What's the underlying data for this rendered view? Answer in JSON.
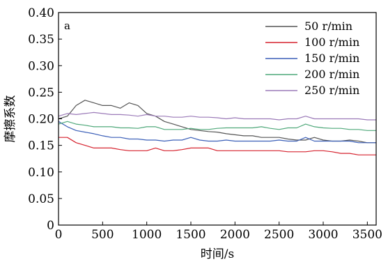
{
  "chart_data": {
    "type": "line",
    "panel_label": "a",
    "xlabel": "时间/s",
    "ylabel": "摩擦系数",
    "xlim": [
      0,
      3600
    ],
    "ylim": [
      0,
      0.4
    ],
    "xticks": [
      0,
      500,
      1000,
      1500,
      2000,
      2500,
      3000,
      3500
    ],
    "yticks": [
      0,
      0.05,
      0.1,
      0.15,
      0.2,
      0.25,
      0.3,
      0.35,
      0.4
    ],
    "ytick_labels": [
      "0",
      "0.05",
      "0.10",
      "0.15",
      "0.20",
      "0.25",
      "0.30",
      "0.35",
      "0.40"
    ],
    "grid": false,
    "legend_position": "top-right",
    "series": [
      {
        "name": "50 r/min",
        "color": "#555555",
        "x": [
          0,
          100,
          200,
          300,
          400,
          500,
          600,
          700,
          800,
          900,
          1000,
          1100,
          1200,
          1300,
          1400,
          1500,
          1600,
          1700,
          1800,
          1900,
          2000,
          2100,
          2200,
          2300,
          2400,
          2500,
          2600,
          2700,
          2800,
          2900,
          3000,
          3100,
          3200,
          3300,
          3400,
          3500,
          3600
        ],
        "y": [
          0.2,
          0.205,
          0.225,
          0.235,
          0.23,
          0.225,
          0.225,
          0.22,
          0.23,
          0.225,
          0.21,
          0.205,
          0.195,
          0.19,
          0.185,
          0.18,
          0.178,
          0.176,
          0.175,
          0.172,
          0.17,
          0.168,
          0.168,
          0.165,
          0.165,
          0.165,
          0.162,
          0.16,
          0.16,
          0.165,
          0.16,
          0.158,
          0.158,
          0.16,
          0.158,
          0.155,
          0.155
        ]
      },
      {
        "name": "100 r/min",
        "color": "#d6222e",
        "x": [
          0,
          100,
          200,
          300,
          400,
          500,
          600,
          700,
          800,
          900,
          1000,
          1100,
          1200,
          1300,
          1400,
          1500,
          1600,
          1700,
          1800,
          1900,
          2000,
          2100,
          2200,
          2300,
          2400,
          2500,
          2600,
          2700,
          2800,
          2900,
          3000,
          3100,
          3200,
          3300,
          3400,
          3500,
          3600
        ],
        "y": [
          0.165,
          0.165,
          0.155,
          0.15,
          0.145,
          0.145,
          0.145,
          0.142,
          0.14,
          0.14,
          0.14,
          0.145,
          0.14,
          0.14,
          0.142,
          0.145,
          0.145,
          0.145,
          0.14,
          0.14,
          0.14,
          0.14,
          0.14,
          0.14,
          0.14,
          0.14,
          0.138,
          0.138,
          0.138,
          0.14,
          0.14,
          0.138,
          0.135,
          0.135,
          0.132,
          0.132,
          0.132
        ]
      },
      {
        "name": "150 r/min",
        "color": "#3b5fb8",
        "x": [
          0,
          100,
          200,
          300,
          400,
          500,
          600,
          700,
          800,
          900,
          1000,
          1100,
          1200,
          1300,
          1400,
          1500,
          1600,
          1700,
          1800,
          1900,
          2000,
          2100,
          2200,
          2300,
          2400,
          2500,
          2600,
          2700,
          2800,
          2900,
          3000,
          3100,
          3200,
          3300,
          3400,
          3500,
          3600
        ],
        "y": [
          0.195,
          0.185,
          0.178,
          0.175,
          0.172,
          0.168,
          0.165,
          0.165,
          0.162,
          0.162,
          0.16,
          0.16,
          0.158,
          0.16,
          0.16,
          0.165,
          0.16,
          0.158,
          0.158,
          0.16,
          0.158,
          0.158,
          0.158,
          0.158,
          0.158,
          0.16,
          0.158,
          0.158,
          0.165,
          0.158,
          0.158,
          0.158,
          0.158,
          0.158,
          0.155,
          0.155,
          0.155
        ]
      },
      {
        "name": "200 r/min",
        "color": "#4fa87a",
        "x": [
          0,
          100,
          200,
          300,
          400,
          500,
          600,
          700,
          800,
          900,
          1000,
          1100,
          1200,
          1300,
          1400,
          1500,
          1600,
          1700,
          1800,
          1900,
          2000,
          2100,
          2200,
          2300,
          2400,
          2500,
          2600,
          2700,
          2800,
          2900,
          3000,
          3100,
          3200,
          3300,
          3400,
          3500,
          3600
        ],
        "y": [
          0.19,
          0.195,
          0.19,
          0.188,
          0.185,
          0.185,
          0.185,
          0.183,
          0.183,
          0.182,
          0.185,
          0.185,
          0.18,
          0.18,
          0.18,
          0.182,
          0.18,
          0.18,
          0.182,
          0.183,
          0.183,
          0.183,
          0.183,
          0.185,
          0.182,
          0.18,
          0.183,
          0.183,
          0.19,
          0.185,
          0.183,
          0.182,
          0.182,
          0.18,
          0.18,
          0.178,
          0.178
        ]
      },
      {
        "name": "250 r/min",
        "color": "#9b7ab8",
        "x": [
          0,
          100,
          200,
          300,
          400,
          500,
          600,
          700,
          800,
          900,
          1000,
          1100,
          1200,
          1300,
          1400,
          1500,
          1600,
          1700,
          1800,
          1900,
          2000,
          2100,
          2200,
          2300,
          2400,
          2500,
          2600,
          2700,
          2800,
          2900,
          3000,
          3100,
          3200,
          3300,
          3400,
          3500,
          3600
        ],
        "y": [
          0.205,
          0.21,
          0.208,
          0.21,
          0.212,
          0.21,
          0.208,
          0.208,
          0.207,
          0.205,
          0.208,
          0.205,
          0.205,
          0.203,
          0.203,
          0.205,
          0.203,
          0.203,
          0.202,
          0.2,
          0.202,
          0.2,
          0.2,
          0.2,
          0.2,
          0.198,
          0.2,
          0.2,
          0.205,
          0.2,
          0.2,
          0.2,
          0.2,
          0.2,
          0.2,
          0.198,
          0.198
        ]
      }
    ]
  }
}
